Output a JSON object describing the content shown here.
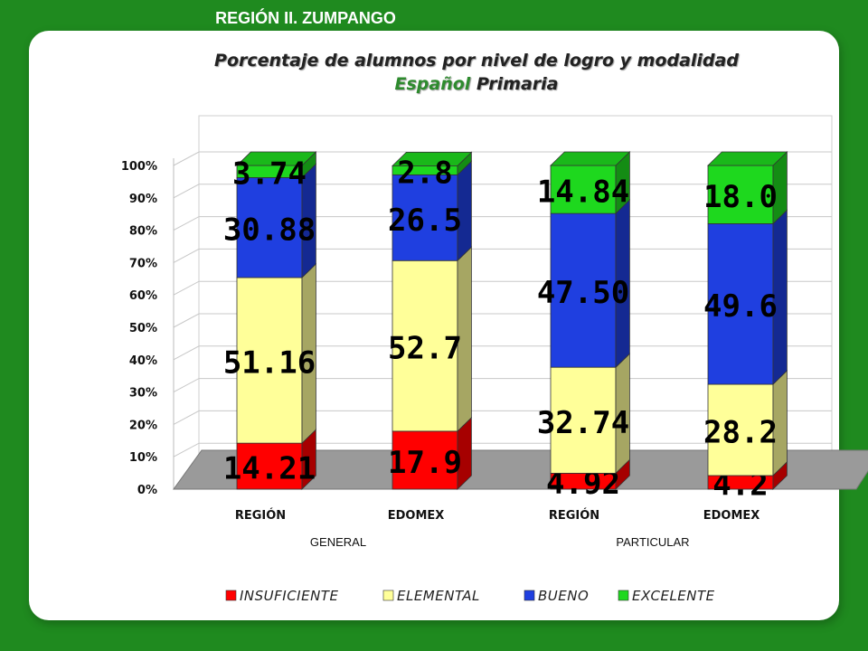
{
  "header": {
    "title": "REGIÓN II. ZUMPANGO"
  },
  "titles": {
    "line1": "Porcentaje de alumnos por nivel de logro y modalidad",
    "subject": "Español",
    "level": "Primaria"
  },
  "chart_data": {
    "type": "bar",
    "stacked": true,
    "three_d": true,
    "categories": [
      "REGIÓN",
      "EDOMEX",
      "REGIÓN",
      "EDOMEX"
    ],
    "groups": [
      {
        "label": "GENERAL",
        "categories": [
          0,
          1
        ]
      },
      {
        "label": "PARTICULAR",
        "categories": [
          2,
          3
        ]
      }
    ],
    "series": [
      {
        "name": "INSUFICIENTE",
        "color": "#ff0000",
        "values": [
          14.21,
          17.9,
          4.92,
          4.2
        ],
        "labels": [
          "14.21",
          "17.9",
          "4.92",
          "4.2"
        ]
      },
      {
        "name": "ELEMENTAL",
        "color": "#ffff99",
        "values": [
          51.16,
          52.7,
          32.74,
          28.2
        ],
        "labels": [
          "51.16",
          "52.7",
          "32.74",
          "28.2"
        ]
      },
      {
        "name": "BUENO",
        "color": "#1f3fe0",
        "values": [
          30.88,
          26.5,
          47.5,
          49.6
        ],
        "labels": [
          "30.88",
          "26.5",
          "47.50",
          "49.6"
        ]
      },
      {
        "name": "EXCELENTE",
        "color": "#1ed81e",
        "values": [
          3.74,
          2.8,
          14.84,
          18.0
        ],
        "labels": [
          "3.74",
          "2.8",
          "14.84",
          "18.0"
        ]
      }
    ],
    "yticks": [
      "0%",
      "10%",
      "20%",
      "30%",
      "40%",
      "50%",
      "60%",
      "70%",
      "80%",
      "90%",
      "100%"
    ],
    "ylim": [
      0,
      100
    ],
    "legend_position": "bottom",
    "grid": true
  }
}
